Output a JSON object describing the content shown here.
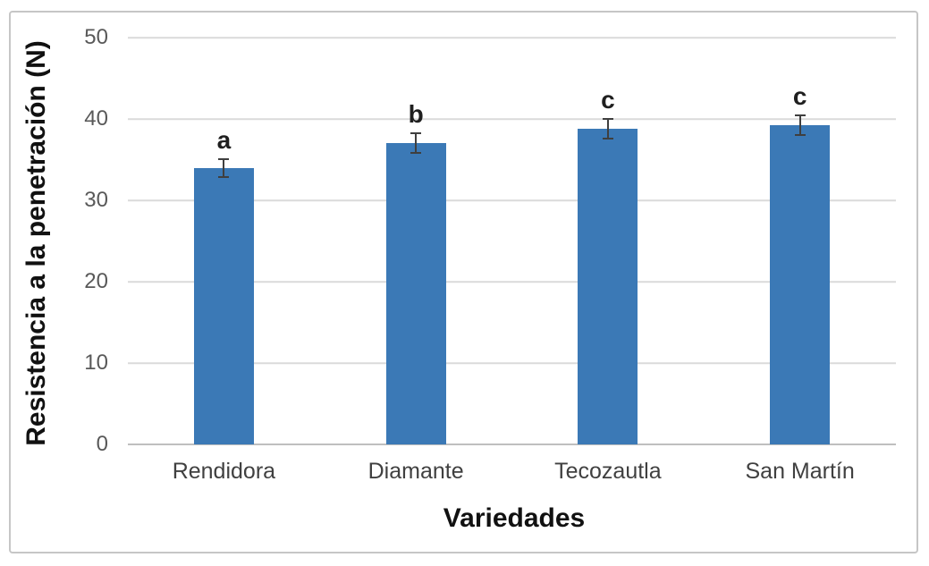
{
  "figure": {
    "background_color": "#ffffff",
    "border_color": "#c6c6c6"
  },
  "chart_data": {
    "type": "bar",
    "title": "",
    "categories": [
      "Rendidora",
      "Diamante",
      "Tecozautla",
      "San Martín"
    ],
    "values": [
      34.0,
      37.0,
      38.8,
      39.2
    ],
    "error_bars": [
      1.1,
      1.2,
      1.2,
      1.2
    ],
    "significance_letters": [
      "a",
      "b",
      "c",
      "c"
    ],
    "xlabel": "Variedades",
    "ylabel": "Resistencia a la penetración (N)",
    "ylim": [
      0,
      50
    ],
    "ytick_step": 10,
    "ytick_labels": [
      "0",
      "10",
      "20",
      "30",
      "40",
      "50"
    ],
    "grid": "horizontal-only",
    "legend_position": "none",
    "colors": {
      "bar": "#3b79b6",
      "error_bar": "#3f3f3f",
      "gridline": "#dadada",
      "zero_axis_line": "#bfbfbf",
      "tick_label": "#595959",
      "category_label": "#404040",
      "axis_title": "#111111",
      "letter": "#1f1f1f"
    }
  }
}
